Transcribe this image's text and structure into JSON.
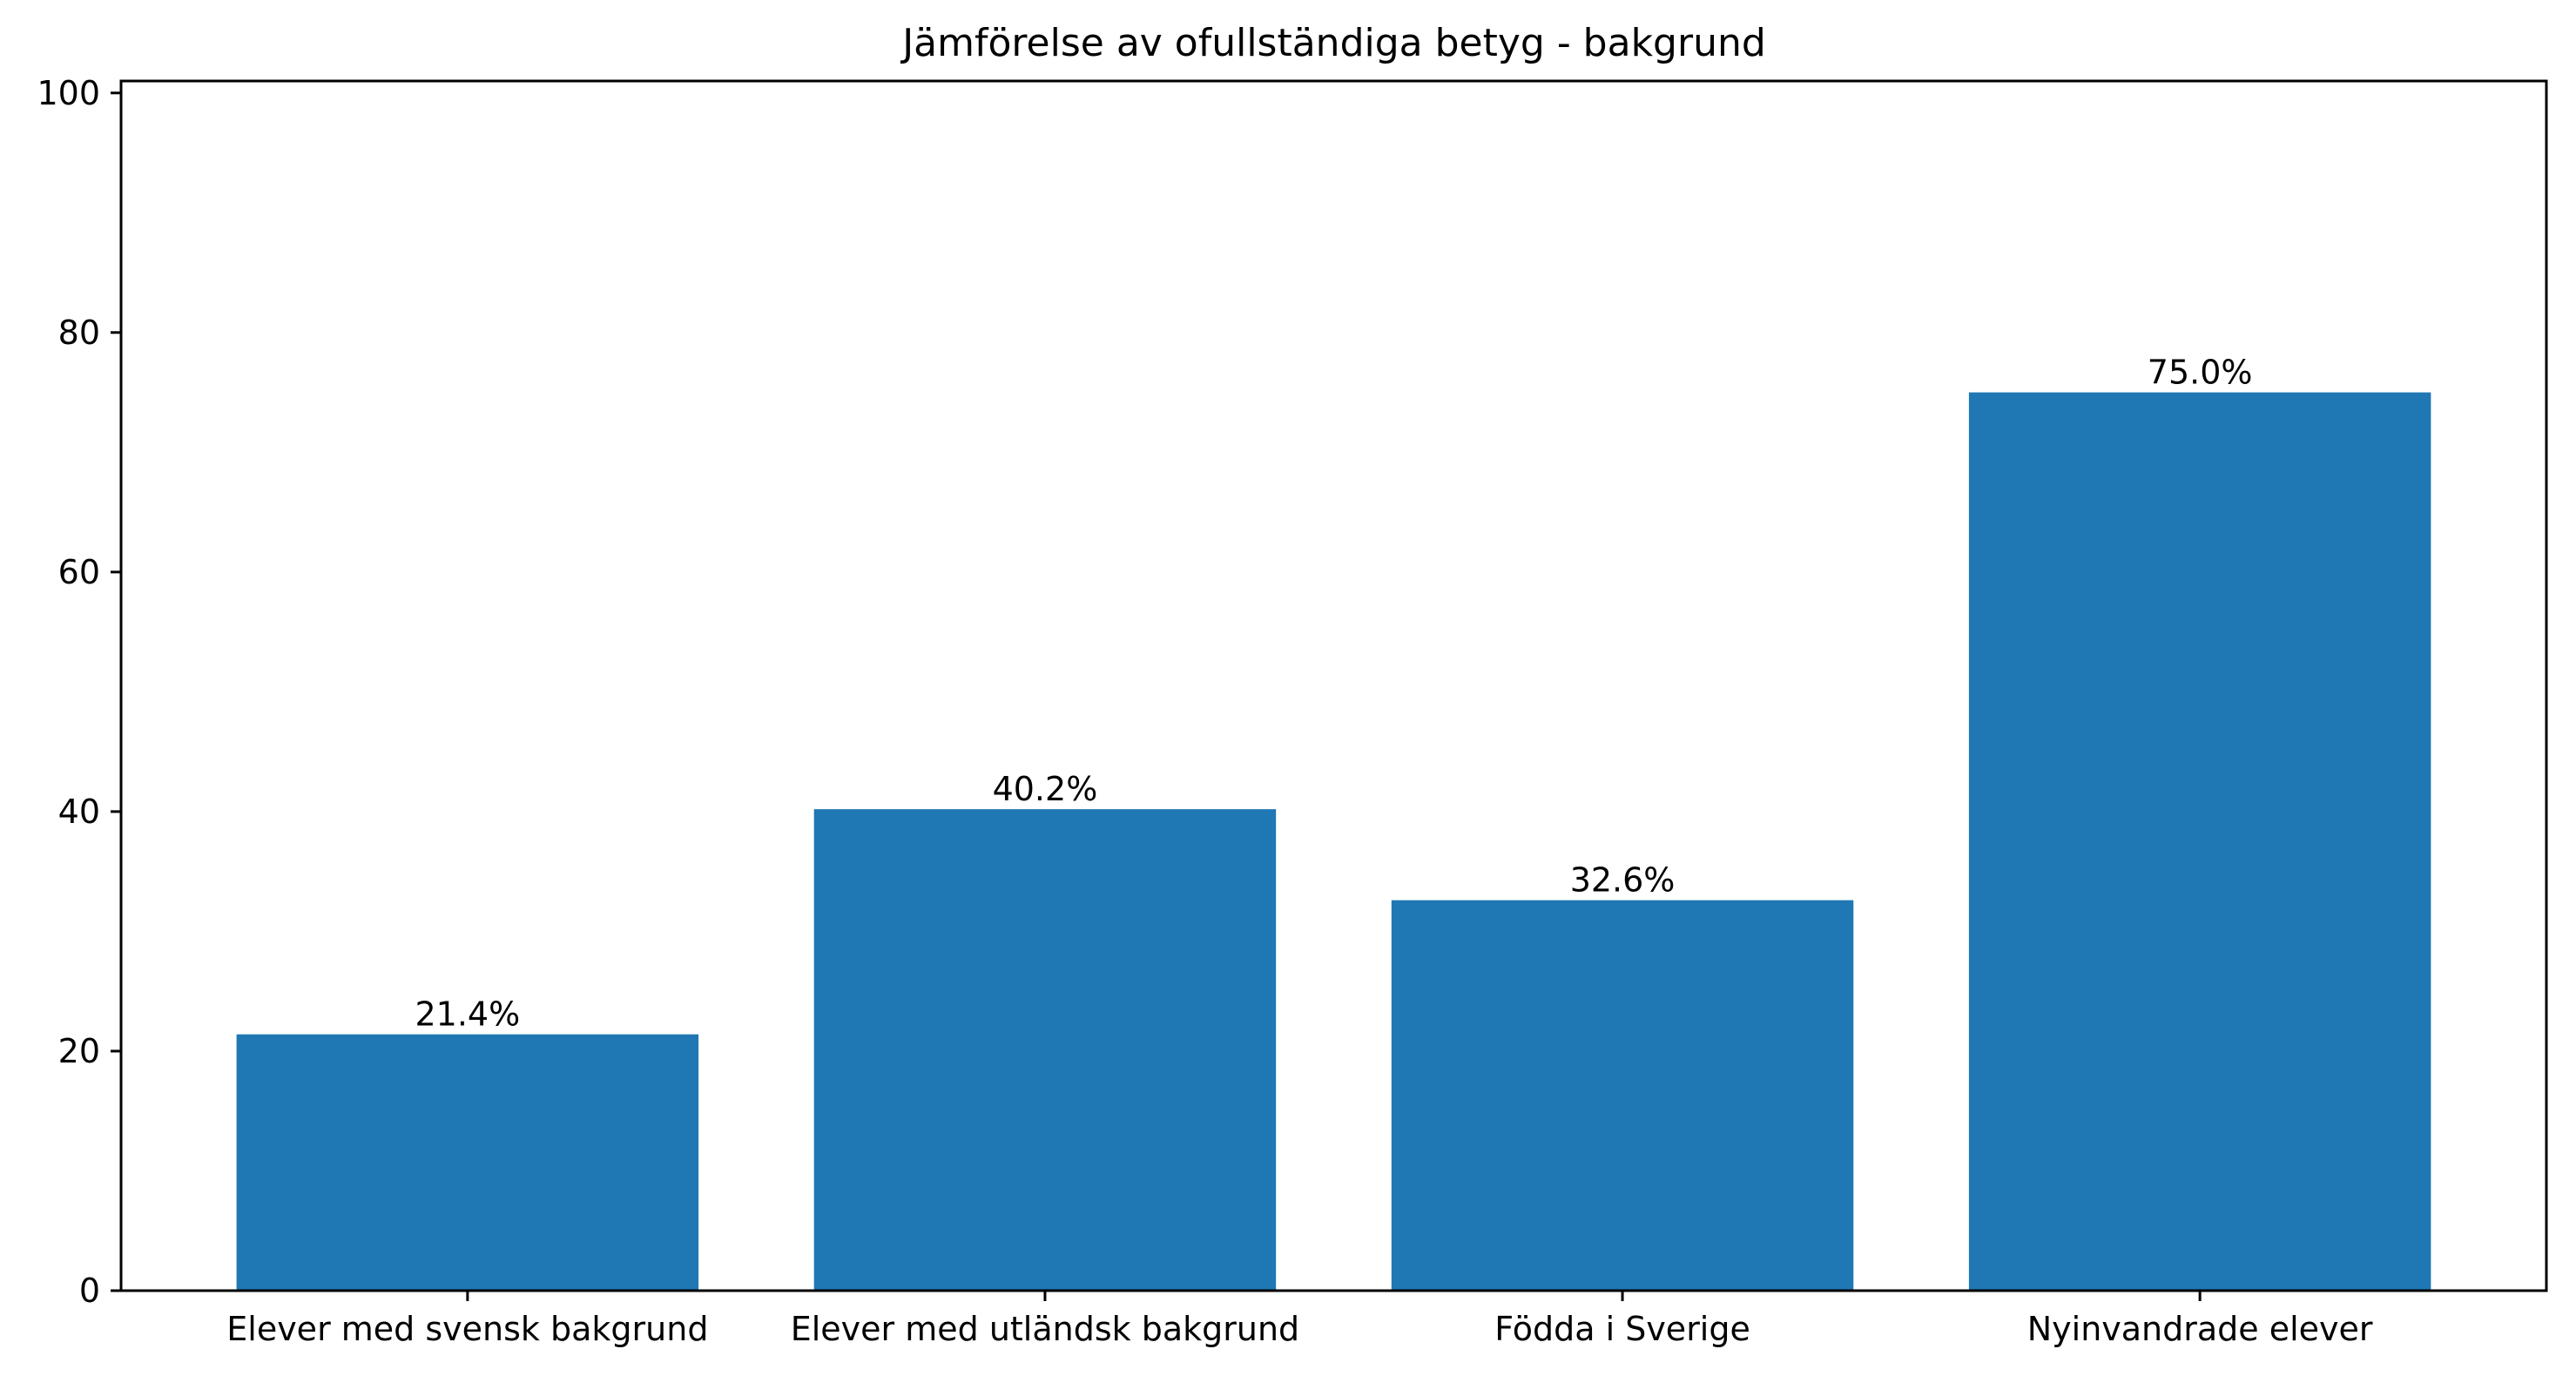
{
  "chart_data": {
    "type": "bar",
    "title": "Jämförelse av ofullständiga betyg - bakgrund",
    "xlabel": "",
    "ylabel": "",
    "categories": [
      "Elever med svensk bakgrund",
      "Elever med utländsk bakgrund",
      "Födda i Sverige",
      "Nyinvandrade elever"
    ],
    "values": [
      21.4,
      40.2,
      32.6,
      75.0
    ],
    "data_labels": [
      "21.4%",
      "40.2%",
      "32.6%",
      "75.0%"
    ],
    "ylim": [
      0,
      101
    ],
    "yticks": [
      0,
      20,
      40,
      60,
      80,
      100
    ],
    "grid": false,
    "legend": "none",
    "bar_color": "#1f77b4"
  }
}
